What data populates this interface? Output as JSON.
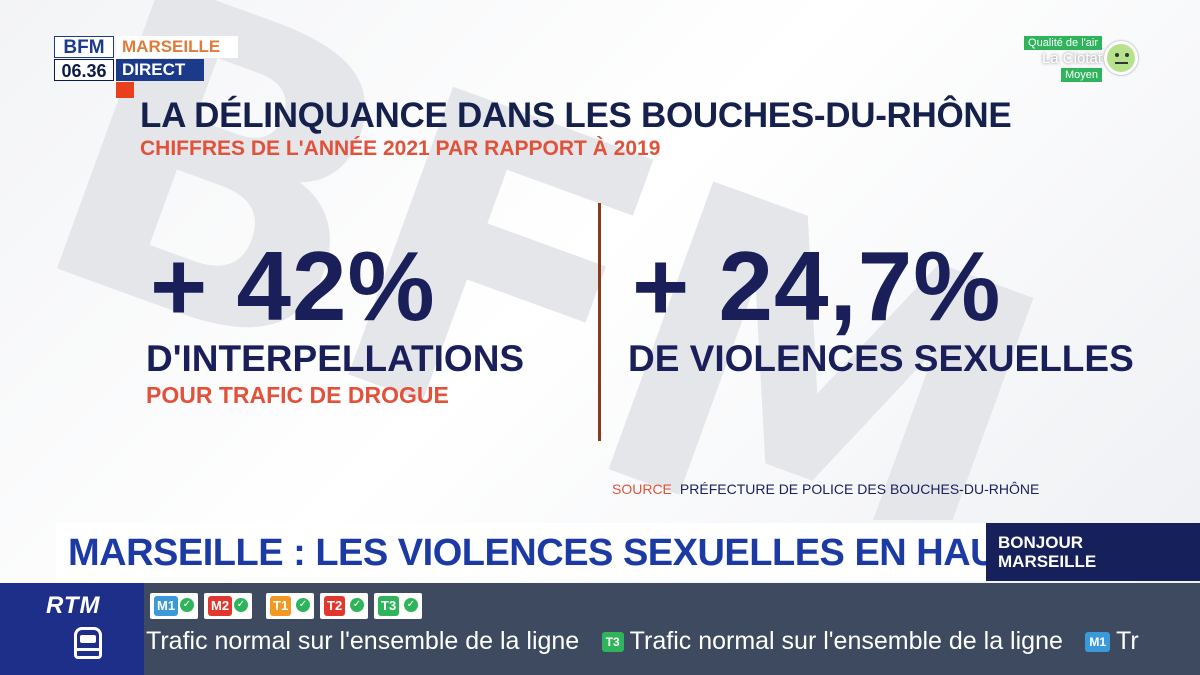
{
  "watermark": {
    "text": "BFM"
  },
  "broadcast": {
    "channel_logo": "BFM",
    "time": "06.36",
    "city": "MARSEILLE",
    "live_label": "DIRECT"
  },
  "air_quality": {
    "label": "Qualité de l'air",
    "city": "La Ciotat",
    "level": "Moyen",
    "icon": "neutral-face-icon"
  },
  "infographic": {
    "title": "LA DÉLINQUANCE DANS LES BOUCHES-DU-RHÔNE",
    "subtitle": "CHIFFRES DE L'ANNÉE 2021 PAR RAPPORT À 2019",
    "stats": [
      {
        "value": "+ 42%",
        "label": "D'INTERPELLATIONS",
        "sublabel": "POUR TRAFIC DE DROGUE"
      },
      {
        "value": "+ 24,7%",
        "label": "DE VIOLENCES SEXUELLES"
      }
    ],
    "source_key": "SOURCE",
    "source_value": "PRÉFECTURE DE POLICE DES BOUCHES-DU-RHÔNE"
  },
  "banner": {
    "headline": "MARSEILLE : LES VIOLENCES SEXUELLES EN HAUSSE",
    "show_name": "BONJOUR MARSEILLE"
  },
  "transit": {
    "operator": "RTM",
    "lines": [
      {
        "code": "M1",
        "status": "ok",
        "color": "#3a9ad9"
      },
      {
        "code": "M2",
        "status": "ok",
        "color": "#e2372f"
      },
      {
        "code": "T1",
        "status": "ok",
        "color": "#f19722"
      },
      {
        "code": "T2",
        "status": "ok",
        "color": "#e2372f"
      },
      {
        "code": "T3",
        "status": "ok",
        "color": "#2fb45c"
      }
    ],
    "ticker": [
      {
        "line": "",
        "text": "Trafic normal sur l'ensemble de la ligne"
      },
      {
        "line": "T3",
        "color": "#2fb45c",
        "text": "Trafic normal sur l'ensemble de la ligne"
      },
      {
        "line": "M1",
        "color": "#3a9ad9",
        "text": "Tr"
      }
    ]
  },
  "colors": {
    "navy": "#1a1f5a",
    "accent_orange": "#e2523a",
    "banner_blue": "#1c3aa4",
    "rtm_blue": "#1e2f8a"
  }
}
